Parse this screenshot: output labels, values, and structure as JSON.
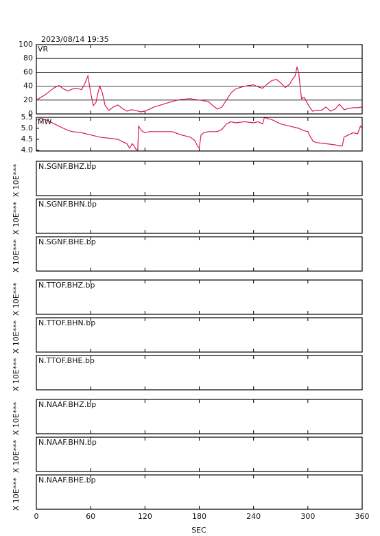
{
  "date": "2023/08/14 19:35",
  "chart_data": [
    {
      "type": "line",
      "label": "VR",
      "color": "#d81b4a",
      "grid": true,
      "xlim": [
        0,
        360
      ],
      "xticks": [
        0,
        60,
        120,
        180,
        240,
        300,
        360
      ],
      "ylim": [
        0,
        100
      ],
      "yticks": [
        0,
        20,
        40,
        60,
        80,
        100
      ],
      "x": [
        0,
        5,
        10,
        15,
        20,
        25,
        30,
        35,
        40,
        45,
        50,
        54,
        57,
        60,
        63,
        66,
        68,
        70,
        73,
        76,
        80,
        85,
        90,
        95,
        100,
        105,
        110,
        115,
        120,
        130,
        140,
        150,
        160,
        170,
        180,
        190,
        195,
        200,
        205,
        210,
        215,
        220,
        230,
        240,
        245,
        250,
        255,
        260,
        265,
        270,
        275,
        280,
        283,
        286,
        288,
        290,
        293,
        296,
        300,
        305,
        310,
        315,
        320,
        325,
        330,
        335,
        340,
        345,
        350,
        355,
        360
      ],
      "values": [
        20,
        24,
        28,
        33,
        38,
        41,
        36,
        33,
        36,
        37,
        35,
        45,
        55,
        30,
        12,
        17,
        30,
        40,
        30,
        12,
        5,
        10,
        13,
        8,
        4,
        6,
        5,
        3,
        4,
        10,
        14,
        18,
        21,
        22,
        20,
        18,
        12,
        7,
        10,
        20,
        30,
        36,
        40,
        42,
        39,
        37,
        43,
        48,
        50,
        45,
        38,
        43,
        50,
        55,
        68,
        58,
        22,
        24,
        14,
        4,
        5,
        5,
        10,
        4,
        7,
        14,
        6,
        8,
        9,
        9,
        10
      ]
    },
    {
      "type": "line",
      "label": "MW",
      "color": "#d81b4a",
      "grid": false,
      "xlim": [
        0,
        360
      ],
      "xticks": [
        0,
        60,
        120,
        180,
        240,
        300,
        360
      ],
      "ylim": [
        3.97,
        5.5
      ],
      "yticks": [
        {
          "value": 4,
          "label": "4.0"
        },
        4.5,
        {
          "value": 5,
          "label": "5.0"
        },
        5.5
      ],
      "x": [
        0,
        5,
        10,
        15,
        20,
        25,
        30,
        35,
        40,
        50,
        60,
        70,
        80,
        90,
        95,
        100,
        103,
        106,
        108,
        110,
        112,
        113,
        116,
        120,
        125,
        135,
        150,
        160,
        170,
        175,
        178,
        180,
        182,
        185,
        190,
        200,
        205,
        210,
        215,
        220,
        230,
        240,
        245,
        250,
        252,
        255,
        260,
        265,
        270,
        280,
        290,
        295,
        300,
        303,
        306,
        310,
        320,
        330,
        335,
        338,
        340,
        345,
        350,
        355,
        358,
        360
      ],
      "values": [
        5.4,
        5.45,
        5.4,
        5.3,
        5.2,
        5.1,
        5.0,
        4.9,
        4.85,
        4.8,
        4.7,
        4.6,
        4.55,
        4.5,
        4.4,
        4.3,
        4.1,
        4.3,
        4.2,
        4.05,
        4.0,
        5.1,
        4.9,
        4.8,
        4.85,
        4.85,
        4.85,
        4.7,
        4.6,
        4.45,
        4.2,
        4.1,
        4.7,
        4.8,
        4.85,
        4.85,
        4.95,
        5.2,
        5.3,
        5.25,
        5.3,
        5.25,
        5.3,
        5.2,
        5.5,
        5.45,
        5.4,
        5.3,
        5.2,
        5.1,
        5.0,
        4.9,
        4.85,
        4.6,
        4.4,
        4.35,
        4.3,
        4.25,
        4.2,
        4.2,
        4.6,
        4.7,
        4.8,
        4.75,
        5.1,
        5.0
      ]
    },
    {
      "type": "waveforms",
      "xlim": [
        0,
        360
      ],
      "xticks": [
        0,
        60,
        120,
        180,
        240,
        300,
        360
      ],
      "xlabel": "SEC",
      "ylabel": "X 10E***",
      "panels": [
        "N.SGNF.BHZ.bp",
        "N.SGNF.BHN.bp",
        "N.SGNF.BHE.bp",
        "N.TTOF.BHZ.bp",
        "N.TTOF.BHN.bp",
        "N.TTOF.BHE.bp",
        "N.NAAF.BHZ.bp",
        "N.NAAF.BHN.bp",
        "N.NAAF.BHE.bp"
      ]
    }
  ]
}
